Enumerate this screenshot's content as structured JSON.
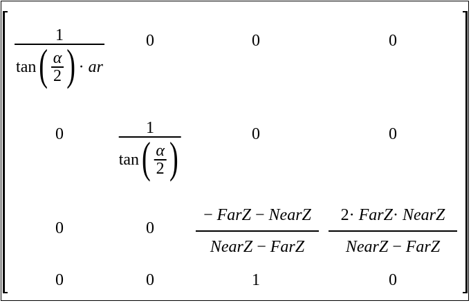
{
  "matrix": {
    "r1c1": {
      "num": "1",
      "fn": "tan",
      "alpha": "α",
      "two": "2",
      "dot": "·",
      "ar": "ar"
    },
    "r1c2": "0",
    "r1c3": "0",
    "r1c4": "0",
    "r2c1": "0",
    "r2c2": {
      "num": "1",
      "fn": "tan",
      "alpha": "α",
      "two": "2"
    },
    "r2c3": "0",
    "r2c4": "0",
    "r3c1": "0",
    "r3c2": "0",
    "r3c3": {
      "num_minus": "−",
      "num_a": "FarZ",
      "num_op": "−",
      "num_b": "NearZ",
      "den_a": "NearZ",
      "den_op": "−",
      "den_b": "FarZ"
    },
    "r3c4": {
      "num_two": "2",
      "num_dot1": "·",
      "num_a": "FarZ",
      "num_dot2": "·",
      "num_b": "NearZ",
      "den_a": "NearZ",
      "den_op": "−",
      "den_b": "FarZ"
    },
    "r4c1": "0",
    "r4c2": "0",
    "r4c3": "1",
    "r4c4": "0"
  }
}
